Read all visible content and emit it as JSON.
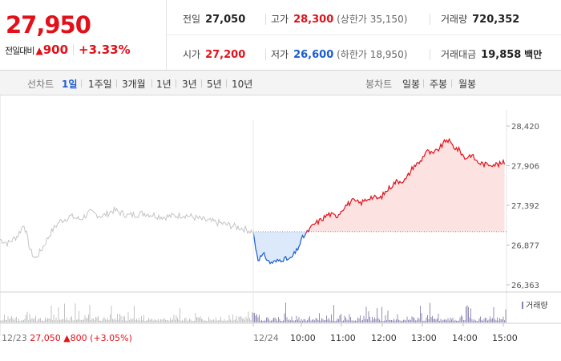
{
  "quote": {
    "price": "27,950",
    "change_label": "전일대비",
    "change_icon": "triangle-up-icon",
    "change_symbol": "▲",
    "change_amount": "900",
    "change_percent": "+3.33%"
  },
  "stats": {
    "prev_close": {
      "label": "전일",
      "value": "27,050"
    },
    "open": {
      "label": "시가",
      "value": "27,200"
    },
    "high": {
      "label": "고가",
      "value": "28,300",
      "limit_text": "(상한가 35,150)"
    },
    "low": {
      "label": "저가",
      "value": "26,600",
      "limit_text": "(하한가 18,950)"
    },
    "volume": {
      "label": "거래량",
      "value": "720,352"
    },
    "amount": {
      "label": "거래대금",
      "value": "19,858",
      "unit": "백만"
    }
  },
  "tabs": {
    "line_label": "선차트",
    "line_periods": [
      "1일",
      "1주일",
      "3개월",
      "1년",
      "3년",
      "5년",
      "10년"
    ],
    "active": "1일",
    "candle_label": "봉차트",
    "candle_periods": [
      "일봉",
      "주봉",
      "월봉"
    ]
  },
  "chart_data": {
    "type": "line",
    "y_ticks": [
      "28,420",
      "27,906",
      "27,392",
      "26,877",
      "26,363"
    ],
    "ylim": [
      26363,
      28420
    ],
    "x_ticks": [
      "12/24",
      "10:00",
      "11:00",
      "12:00",
      "13:00",
      "14:00",
      "15:00"
    ],
    "baseline_value": 27050,
    "prev_day": {
      "date": "12/23",
      "close": "27,050",
      "change_symbol": "▲",
      "change": "800",
      "change_percent": "(+3.05%)"
    },
    "legend": "거래량",
    "colors": {
      "up": "#e1111a",
      "down": "#1a5dd0",
      "prev_day": "#c4c4c8",
      "up_fill": "#fde2e2",
      "down_fill": "#dbe9fb",
      "volume": "#8a7fb0",
      "volume_prev": "#bdbdbd",
      "baseline": "#777777"
    }
  }
}
